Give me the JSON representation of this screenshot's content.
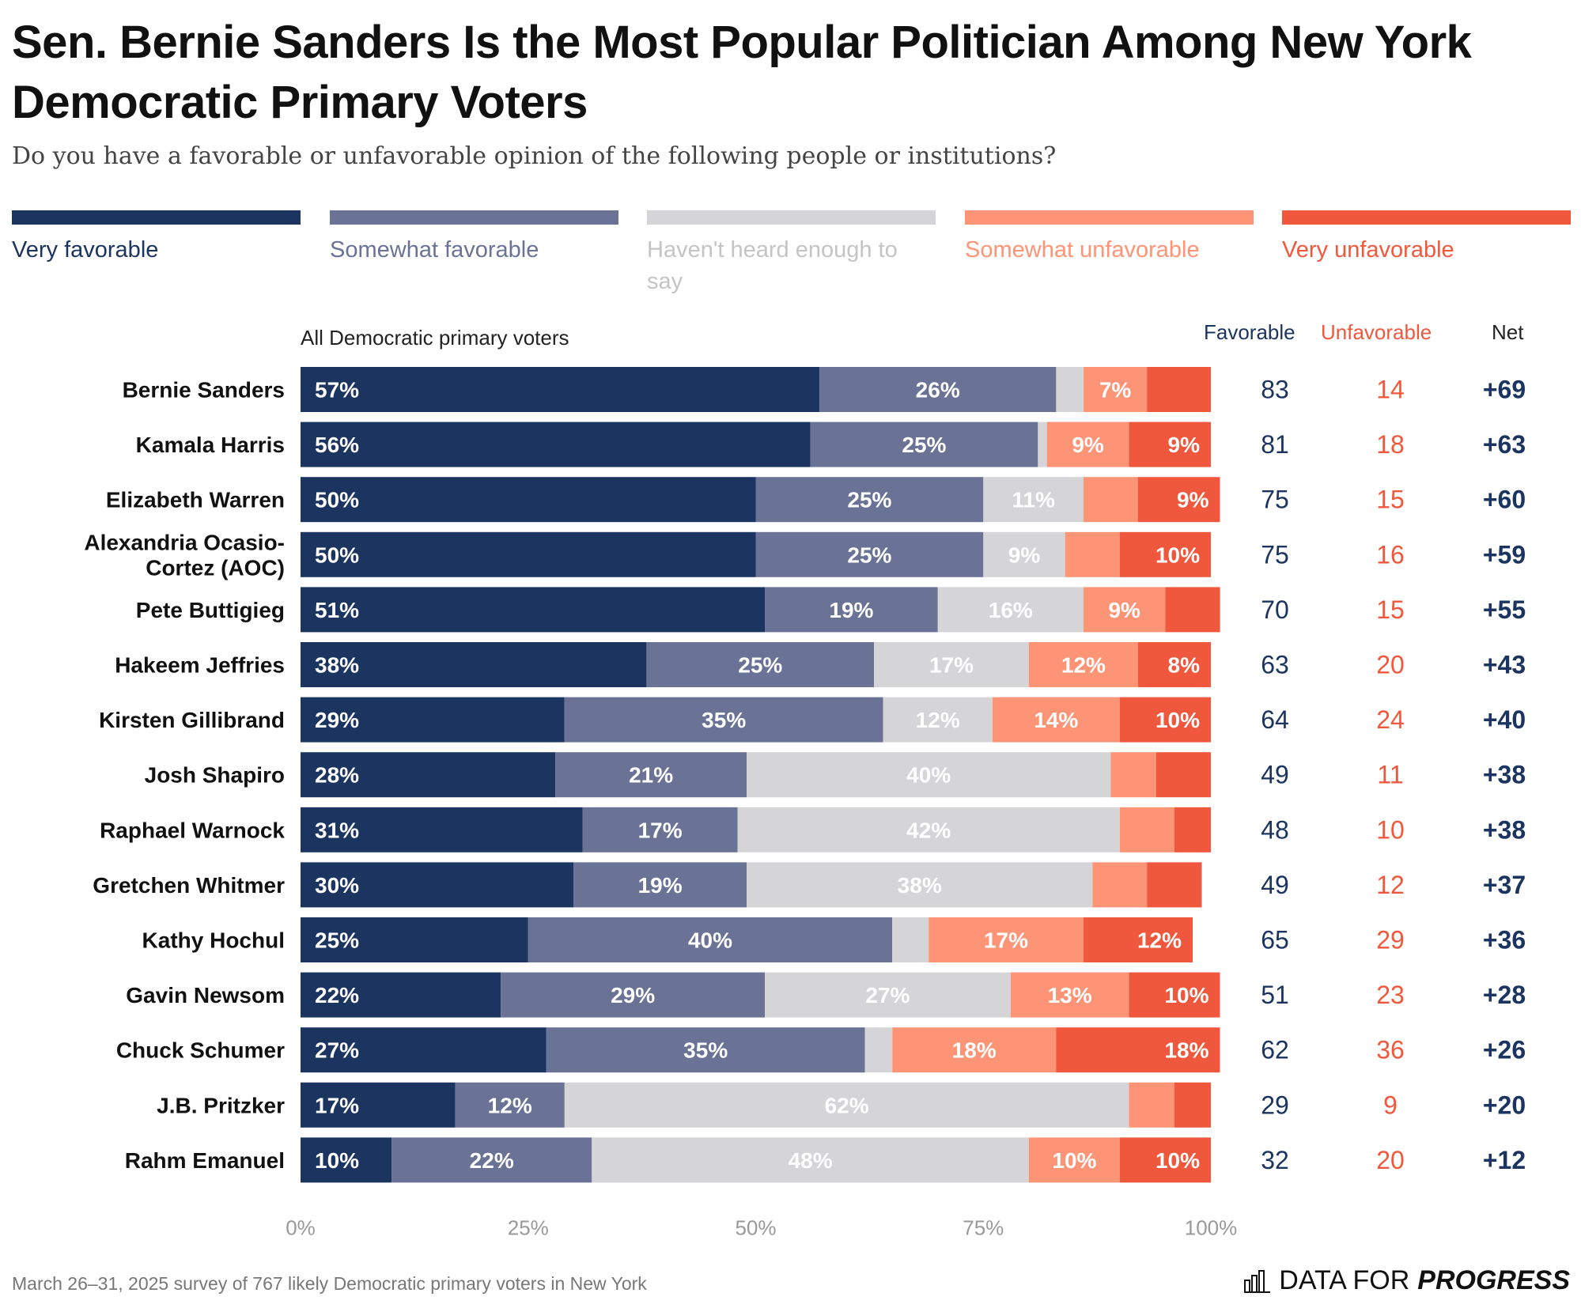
{
  "title": "Sen. Bernie Sanders Is the Most Popular Politician Among New York Democratic Primary Voters",
  "subtitle": "Do you have a favorable or unfavorable opinion of the following people or institutions?",
  "legend": [
    {
      "label": "Very favorable",
      "color": "#1b3560"
    },
    {
      "label": "Somewhat favorable",
      "color": "#6a7396"
    },
    {
      "label": "Haven't heard enough to say",
      "color": "#d5d5d7"
    },
    {
      "label": "Somewhat unfavorable",
      "color": "#fd9476"
    },
    {
      "label": "Very unfavorable",
      "color": "#f0583d"
    }
  ],
  "columns": {
    "group_label": "All Democratic primary voters",
    "favorable": "Favorable",
    "unfavorable": "Unfavorable",
    "net": "Net"
  },
  "chart_data": {
    "type": "bar",
    "orientation": "horizontal-stacked",
    "title": "Sen. Bernie Sanders Is the Most Popular Politician Among New York Democratic Primary Voters",
    "xlabel": "",
    "ylabel": "",
    "xlim": [
      0,
      100
    ],
    "x_ticks": [
      "0%",
      "25%",
      "50%",
      "75%",
      "100%"
    ],
    "categories": [
      "Bernie Sanders",
      "Kamala Harris",
      "Elizabeth Warren",
      "Alexandria Ocasio-Cortez (AOC)",
      "Pete Buttigieg",
      "Hakeem Jeffries",
      "Kirsten Gillibrand",
      "Josh Shapiro",
      "Raphael Warnock",
      "Gretchen Whitmer",
      "Kathy Hochul",
      "Gavin Newsom",
      "Chuck Schumer",
      "J.B. Pritzker",
      "Rahm Emanuel"
    ],
    "series": [
      {
        "name": "Very favorable",
        "values": [
          57,
          56,
          50,
          50,
          51,
          38,
          29,
          28,
          31,
          30,
          25,
          22,
          27,
          17,
          10
        ]
      },
      {
        "name": "Somewhat favorable",
        "values": [
          26,
          25,
          25,
          25,
          19,
          25,
          35,
          21,
          17,
          19,
          40,
          29,
          35,
          12,
          22
        ]
      },
      {
        "name": "Haven't heard enough to say",
        "values": [
          3,
          1,
          11,
          9,
          16,
          17,
          12,
          40,
          42,
          38,
          4,
          27,
          3,
          62,
          48
        ]
      },
      {
        "name": "Somewhat unfavorable",
        "values": [
          7,
          9,
          6,
          6,
          9,
          12,
          14,
          5,
          6,
          6,
          17,
          13,
          18,
          5,
          10
        ]
      },
      {
        "name": "Very unfavorable",
        "values": [
          7,
          9,
          9,
          10,
          6,
          8,
          10,
          6,
          4,
          6,
          12,
          10,
          18,
          4,
          10
        ]
      }
    ],
    "favorable": [
      83,
      81,
      75,
      75,
      70,
      63,
      64,
      49,
      48,
      49,
      65,
      51,
      62,
      29,
      32
    ],
    "unfavorable": [
      14,
      18,
      15,
      16,
      15,
      20,
      24,
      11,
      10,
      12,
      29,
      23,
      36,
      9,
      20
    ],
    "net": [
      "+69",
      "+63",
      "+60",
      "+59",
      "+55",
      "+43",
      "+40",
      "+38",
      "+38",
      "+37",
      "+36",
      "+28",
      "+26",
      "+20",
      "+12"
    ],
    "shown_labels": [
      [
        "57%",
        "26%",
        "",
        "7%",
        ""
      ],
      [
        "56%",
        "25%",
        "",
        "9%",
        "9%"
      ],
      [
        "50%",
        "25%",
        "11%",
        "",
        "9%"
      ],
      [
        "50%",
        "25%",
        "9%",
        "",
        "10%"
      ],
      [
        "51%",
        "19%",
        "16%",
        "9%",
        ""
      ],
      [
        "38%",
        "25%",
        "17%",
        "12%",
        "8%"
      ],
      [
        "29%",
        "35%",
        "12%",
        "14%",
        "10%"
      ],
      [
        "28%",
        "21%",
        "40%",
        "",
        ""
      ],
      [
        "31%",
        "17%",
        "42%",
        "",
        ""
      ],
      [
        "30%",
        "19%",
        "38%",
        "",
        ""
      ],
      [
        "25%",
        "40%",
        "",
        "17%",
        "12%"
      ],
      [
        "22%",
        "29%",
        "27%",
        "13%",
        "10%"
      ],
      [
        "27%",
        "35%",
        "",
        "18%",
        "18%"
      ],
      [
        "17%",
        "12%",
        "62%",
        "",
        ""
      ],
      [
        "10%",
        "22%",
        "48%",
        "10%",
        "10%"
      ]
    ]
  },
  "footer": {
    "note": "March 26–31, 2025 survey of 767 likely Democratic primary voters in New York",
    "brand_regular": "DATA FOR",
    "brand_bold": "PROGRESS"
  }
}
